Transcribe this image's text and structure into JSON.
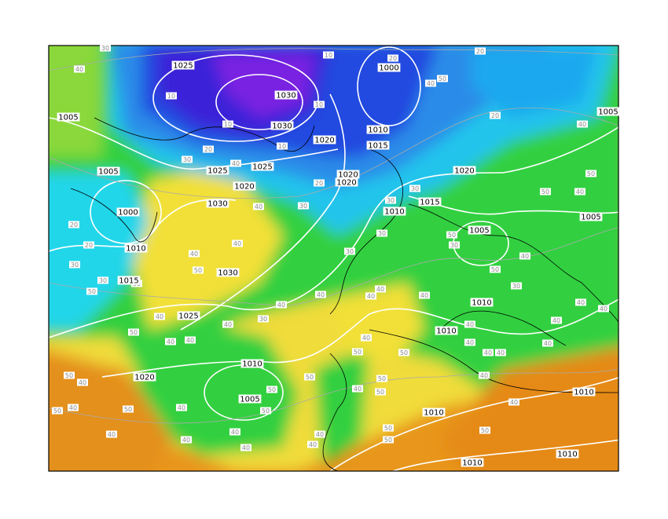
{
  "map": {
    "isobar_labels": [
      "1025",
      "1030",
      "1000",
      "1005",
      "1030",
      "1010",
      "1015",
      "1020",
      "1005",
      "1005",
      "1025",
      "1025",
      "1020",
      "1020",
      "1020",
      "1020",
      "1030",
      "1000",
      "1010",
      "1015",
      "1005",
      "1005",
      "1010",
      "1015",
      "1030",
      "1010",
      "1025",
      "1010",
      "1010",
      "1020",
      "1005",
      "1010",
      "1010",
      "1010",
      "1010"
    ],
    "thickness_labels": [
      "30",
      "40",
      "10",
      "10",
      "20",
      "30",
      "40",
      "10",
      "10",
      "10",
      "20",
      "40",
      "50",
      "20",
      "20",
      "40",
      "50",
      "50",
      "40",
      "20",
      "30",
      "30",
      "30",
      "30",
      "20",
      "20",
      "30",
      "30",
      "40",
      "40",
      "40",
      "50",
      "30",
      "50",
      "50",
      "50",
      "30",
      "40",
      "50",
      "30",
      "40",
      "40",
      "40",
      "40",
      "30",
      "40",
      "40",
      "40",
      "40",
      "50",
      "40",
      "40",
      "40",
      "40",
      "40",
      "40",
      "40",
      "40",
      "40",
      "40",
      "50",
      "50",
      "40",
      "50",
      "40",
      "50",
      "50",
      "50",
      "40",
      "40",
      "50",
      "50",
      "50",
      "40",
      "50",
      "40",
      "40",
      "40",
      "40",
      "50",
      "40",
      "40",
      "50",
      "50",
      "40"
    ]
  }
}
